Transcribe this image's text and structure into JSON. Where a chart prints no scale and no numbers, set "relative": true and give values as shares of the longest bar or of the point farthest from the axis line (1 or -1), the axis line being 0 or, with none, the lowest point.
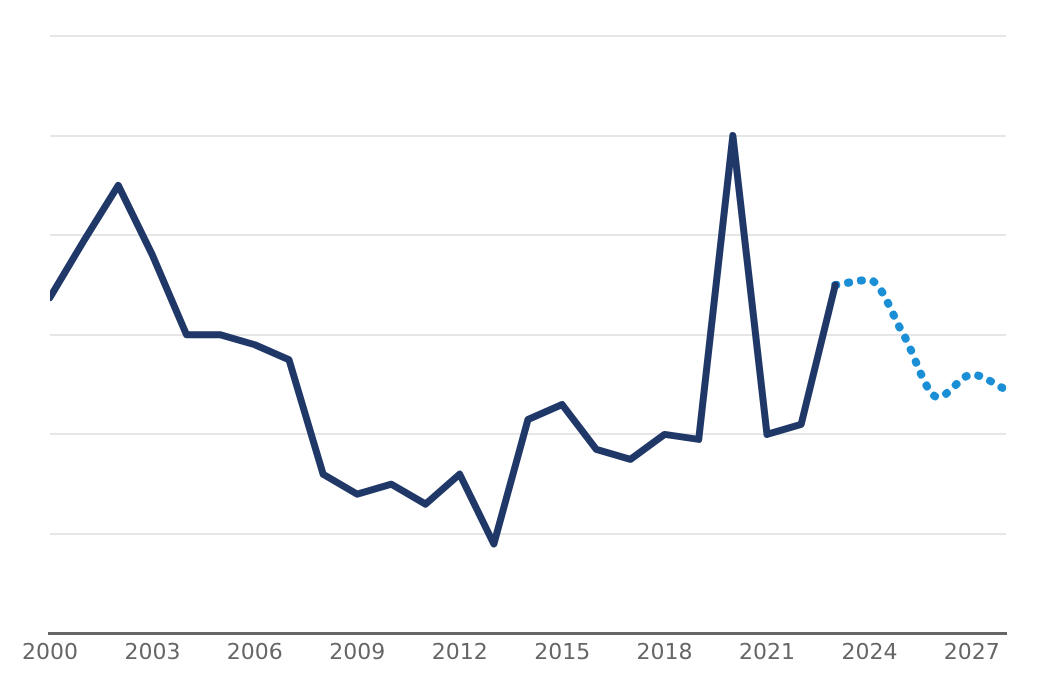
{
  "chart_data": {
    "type": "line",
    "relative": true,
    "xlim": [
      2000,
      2028
    ],
    "xticks": [
      2000,
      2003,
      2006,
      2009,
      2012,
      2015,
      2018,
      2021,
      2024,
      2027
    ],
    "grid": "y",
    "legend": false,
    "tick_labels": "x",
    "marker": "none",
    "series": [
      {
        "color": "#1f3868",
        "line_style": "solid",
        "x": [
          2000,
          2001,
          2002,
          2003,
          2004,
          2005,
          2006,
          2007,
          2008,
          2009,
          2010,
          2011,
          2012,
          2013,
          2014,
          2015,
          2016,
          2017,
          2018,
          2019,
          2020,
          2021,
          2022,
          2023
        ],
        "values": [
          0.675,
          0.79,
          0.9,
          0.76,
          0.6,
          0.6,
          0.58,
          0.55,
          0.32,
          0.28,
          0.3,
          0.26,
          0.32,
          0.18,
          0.43,
          0.46,
          0.37,
          0.35,
          0.4,
          0.39,
          1,
          0.4,
          0.42,
          0.7
        ]
      },
      {
        "color": "#1a8fd6",
        "line_style": "dotted",
        "x": [
          2023,
          2024,
          2025,
          2026,
          2027,
          2028
        ],
        "values": [
          0.7,
          0.71,
          0.6,
          0.475,
          0.52,
          0.49
        ]
      }
    ]
  }
}
